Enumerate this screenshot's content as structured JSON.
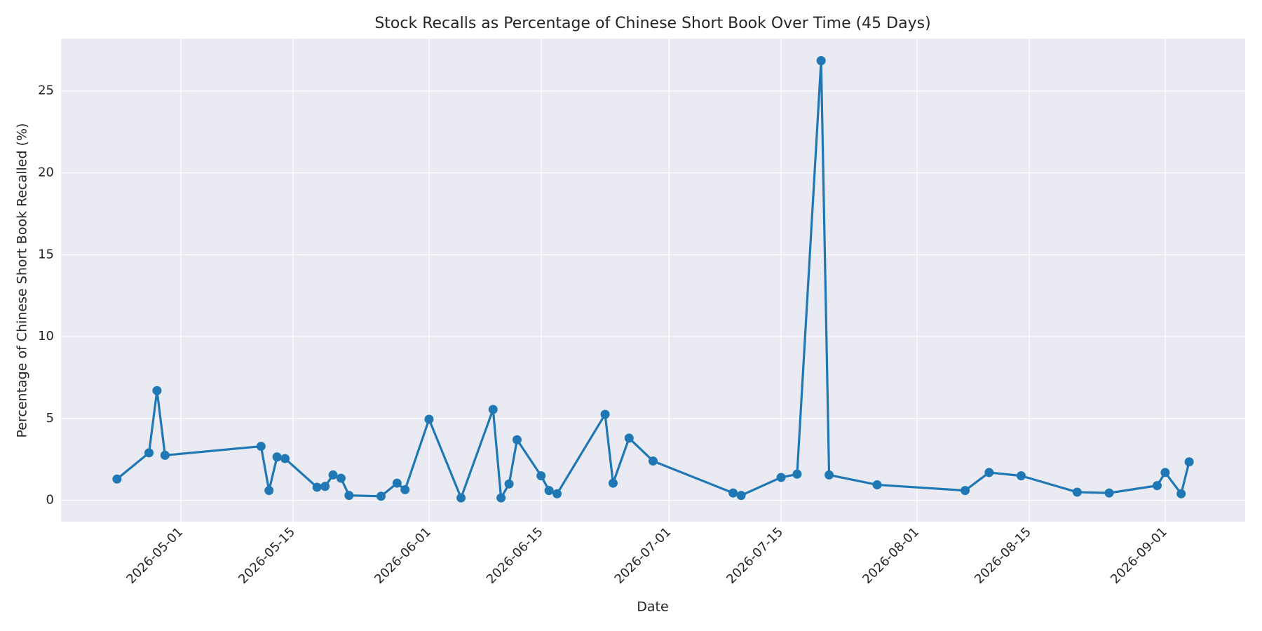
{
  "chart_data": {
    "type": "line",
    "title": "Stock Recalls as Percentage of Chinese Short Book Over Time (45 Days)",
    "xlabel": "Date",
    "ylabel": "Percentage of Chinese Short Book Recalled (%)",
    "x": [
      "2026-04-23",
      "2026-04-27",
      "2026-04-28",
      "2026-04-29",
      "2026-05-11",
      "2026-05-12",
      "2026-05-13",
      "2026-05-14",
      "2026-05-18",
      "2026-05-19",
      "2026-05-20",
      "2026-05-21",
      "2026-05-22",
      "2026-05-26",
      "2026-05-28",
      "2026-05-29",
      "2026-06-01",
      "2026-06-05",
      "2026-06-09",
      "2026-06-10",
      "2026-06-11",
      "2026-06-12",
      "2026-06-15",
      "2026-06-16",
      "2026-06-17",
      "2026-06-23",
      "2026-06-24",
      "2026-06-26",
      "2026-06-29",
      "2026-07-09",
      "2026-07-10",
      "2026-07-15",
      "2026-07-17",
      "2026-07-20",
      "2026-07-21",
      "2026-07-27",
      "2026-08-07",
      "2026-08-10",
      "2026-08-14",
      "2026-08-21",
      "2026-08-25",
      "2026-08-31",
      "2026-09-01",
      "2026-09-03",
      "2026-09-04"
    ],
    "values": [
      1.3,
      2.9,
      6.7,
      2.75,
      3.3,
      0.6,
      2.65,
      2.55,
      0.8,
      0.85,
      1.55,
      1.35,
      0.3,
      0.25,
      1.05,
      0.65,
      4.95,
      0.15,
      5.55,
      0.15,
      1.0,
      3.7,
      1.5,
      0.6,
      0.4,
      5.25,
      1.05,
      3.8,
      2.4,
      0.45,
      0.3,
      1.4,
      1.6,
      26.85,
      1.55,
      0.95,
      0.6,
      1.7,
      1.5,
      0.5,
      0.45,
      0.9,
      1.7,
      0.4,
      2.35
    ],
    "color": "#1f77b4",
    "xlim": [
      "2026-04-16",
      "2026-09-11"
    ],
    "xticks": [
      "2026-05-01",
      "2026-05-15",
      "2026-06-01",
      "2026-06-15",
      "2026-07-01",
      "2026-07-15",
      "2026-08-01",
      "2026-08-15",
      "2026-09-01"
    ],
    "ylim": [
      -1.3,
      28.2
    ],
    "yticks": [
      0,
      5,
      10,
      15,
      20,
      25
    ],
    "grid": true
  }
}
